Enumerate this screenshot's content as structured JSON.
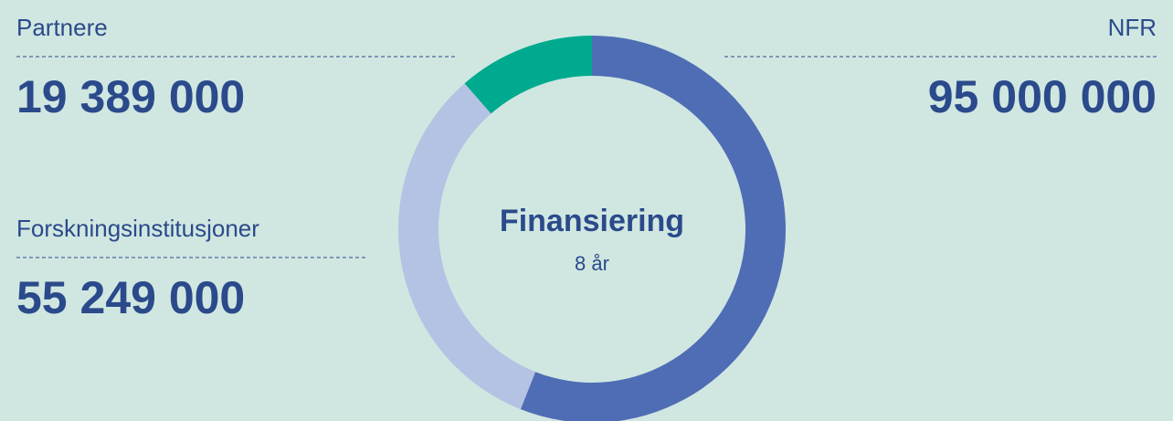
{
  "chart_data": {
    "type": "donut",
    "title": "Finansiering",
    "subtitle": "8 år",
    "categories": [
      "NFR",
      "Forskningsinstitusjoner",
      "Partnere"
    ],
    "values": [
      95000000,
      55249000,
      19389000
    ],
    "value_labels": [
      "95 000 000",
      "55 249 000",
      "19 389 000"
    ],
    "colors": [
      "#4f6db5",
      "#b4c2e3",
      "#00aa8e"
    ]
  }
}
